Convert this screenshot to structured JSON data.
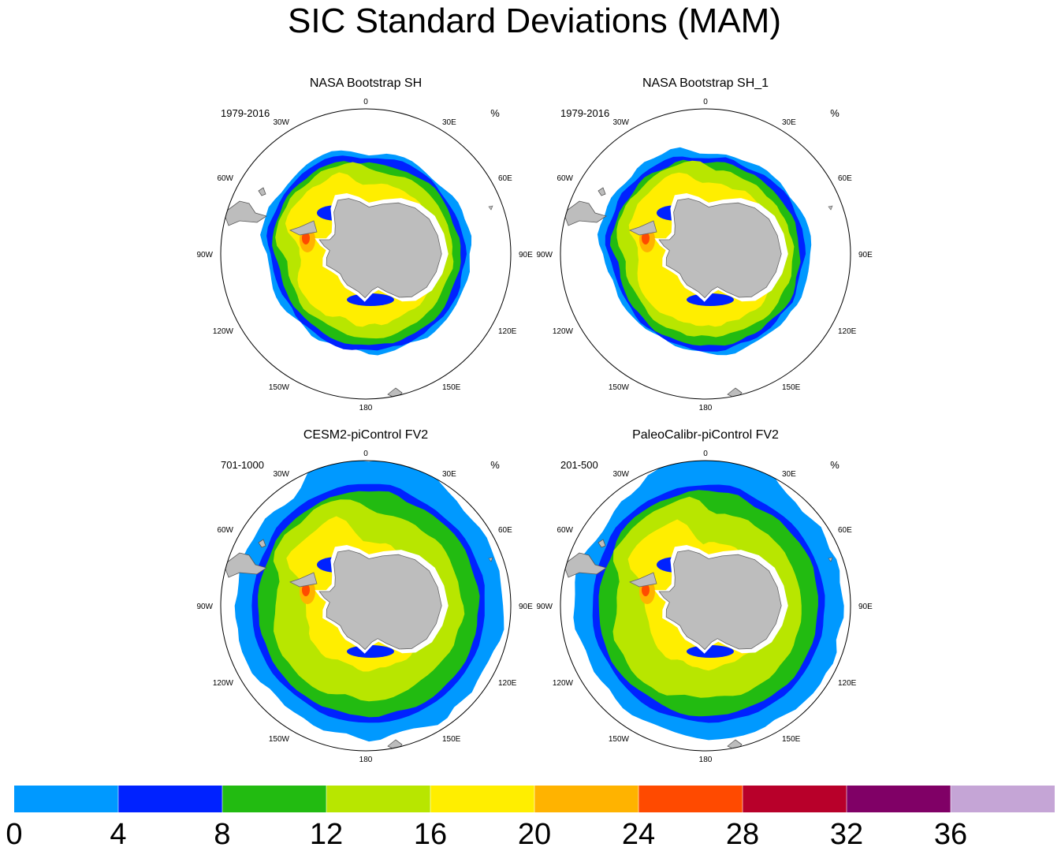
{
  "title": "SIC Standard Deviations (MAM)",
  "chart_data": [
    {
      "type": "polar-map",
      "panel_title": "NASA Bootstrap SH",
      "period": "1979-2016",
      "units": "%",
      "longitude_labels": [
        "0",
        "30E",
        "60E",
        "90E",
        "120E",
        "150E",
        "180",
        "150W",
        "120W",
        "90W",
        "60W",
        "30W"
      ],
      "field_variant": "obs"
    },
    {
      "type": "polar-map",
      "panel_title": "NASA Bootstrap SH_1",
      "period": "1979-2016",
      "units": "%",
      "longitude_labels": [
        "0",
        "30E",
        "60E",
        "90E",
        "120E",
        "150E",
        "180",
        "150W",
        "120W",
        "90W",
        "60W",
        "30W"
      ],
      "field_variant": "obs"
    },
    {
      "type": "polar-map",
      "panel_title": "CESM2-piControl FV2",
      "period": "701-1000",
      "units": "%",
      "longitude_labels": [
        "0",
        "30E",
        "60E",
        "90E",
        "120E",
        "150E",
        "180",
        "150W",
        "120W",
        "90W",
        "60W",
        "30W"
      ],
      "field_variant": "model"
    },
    {
      "type": "polar-map",
      "panel_title": "PaleoCalibr-piControl FV2",
      "period": "201-500",
      "units": "%",
      "longitude_labels": [
        "0",
        "30E",
        "60E",
        "90E",
        "120E",
        "150E",
        "180",
        "150W",
        "120W",
        "90W",
        "60W",
        "30W"
      ],
      "field_variant": "model"
    }
  ],
  "colorbar": {
    "ticks": [
      "0",
      "4",
      "8",
      "12",
      "16",
      "20",
      "24",
      "28",
      "32",
      "36"
    ],
    "colors": [
      "#0099ff",
      "#0022ff",
      "#22bb11",
      "#b8e600",
      "#ffee00",
      "#ffb300",
      "#ff4a00",
      "#b8002a",
      "#800066",
      "#c5a5d6"
    ]
  },
  "land_color": "#bdbdbd"
}
